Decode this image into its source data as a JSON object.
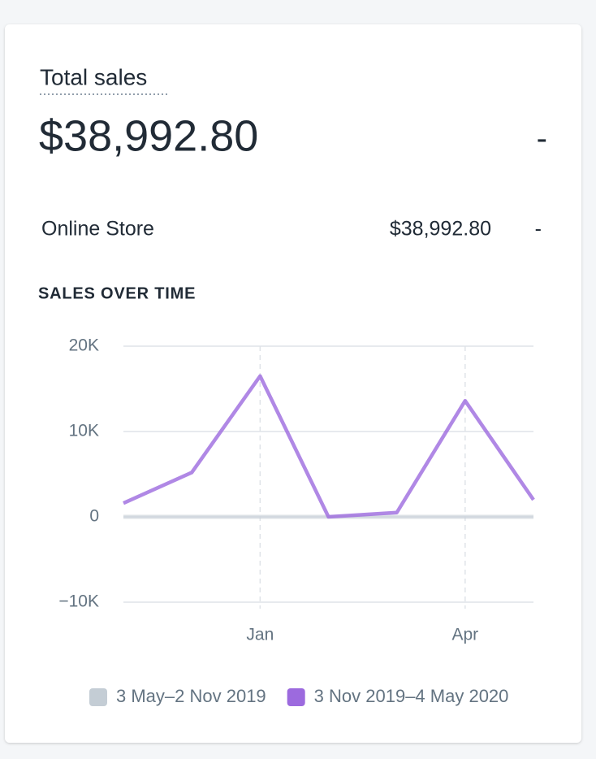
{
  "header": {
    "title": "Total sales",
    "total": "$38,992.80",
    "change": "-"
  },
  "breakdown": [
    {
      "channel": "Online Store",
      "amount": "$38,992.80",
      "change": "-"
    }
  ],
  "chart_data": {
    "type": "line",
    "title": "SALES OVER TIME",
    "categories": [
      null,
      null,
      "Jan",
      null,
      null,
      "Apr",
      null
    ],
    "series": [
      {
        "name": "3 May–2 Nov 2019",
        "color": "#c4cdd5",
        "values": [
          0,
          0,
          0,
          0,
          0,
          0,
          0
        ]
      },
      {
        "name": "3 Nov 2019–4 May 2020",
        "color": "#9c6ade",
        "values": [
          1600,
          5200,
          16500,
          0,
          500,
          13600,
          2000
        ]
      }
    ],
    "ylim": [
      -10000,
      20000
    ],
    "yticks": [
      {
        "value": -10000,
        "label": "−10K"
      },
      0,
      {
        "value": 10000,
        "label": "10K"
      },
      {
        "value": 20000,
        "label": "20K"
      }
    ],
    "grid": true,
    "legend": "bottom"
  }
}
